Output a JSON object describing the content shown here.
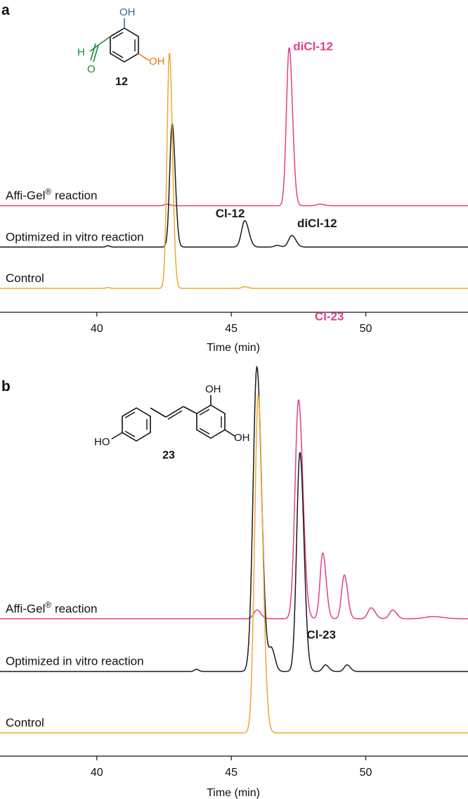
{
  "colors": {
    "control": "#f0a830",
    "optimized": "#1a1a1a",
    "affi_gel": "#e0408a",
    "mol_black": "#111111",
    "mol_blue": "#3b5fa8",
    "mol_orange": "#e07a1a",
    "mol_green": "#1f8a3a"
  },
  "chart_data": [
    {
      "type": "line",
      "panel": "a",
      "xlabel": "Time (min)",
      "xlim": [
        36.4,
        53.8
      ],
      "xticks": [
        40,
        45,
        50
      ],
      "series": [
        {
          "name": "Affi-Gel® reaction",
          "label_main": "Affi-Gel",
          "label_sup": "®",
          "label_rest": " reaction",
          "color_key": "affi_gel",
          "baseline_offset": 0.5,
          "peaks": [
            [
              42.6,
              0.01,
              0.09
            ],
            [
              47.15,
              0.96,
              0.1
            ],
            [
              48.3,
              0.01,
              0.12
            ]
          ]
        },
        {
          "name": "Optimized in vitro reaction",
          "color_key": "optimized",
          "baseline_offset": 0.25,
          "peaks": [
            [
              40.4,
              0.008,
              0.06
            ],
            [
              42.8,
              0.75,
              0.09
            ],
            [
              45.5,
              0.16,
              0.12
            ],
            [
              46.7,
              0.01,
              0.1
            ],
            [
              47.25,
              0.07,
              0.12
            ]
          ]
        },
        {
          "name": "Control",
          "color_key": "control",
          "baseline_offset": 0.0,
          "peaks": [
            [
              40.4,
              0.005,
              0.06
            ],
            [
              42.7,
              1.43,
              0.09
            ],
            [
              45.5,
              0.01,
              0.1
            ]
          ]
        }
      ],
      "annotations": [
        {
          "text": "diCl-12",
          "x": 47.3,
          "y": 1.44,
          "color_key": "affi_gel"
        },
        {
          "text": "Cl-12",
          "x": 45.5,
          "y": 0.43,
          "color_key": "optimized",
          "anchor": "end"
        },
        {
          "text": "diCl-12",
          "x": 47.45,
          "y": 0.37,
          "color_key": "optimized"
        }
      ],
      "molecule": {
        "number": "12",
        "substituents": [
          "OH",
          "OH",
          "H",
          "O"
        ]
      }
    },
    {
      "type": "line",
      "panel": "b",
      "xlabel": "Time (min)",
      "xlim": [
        36.4,
        53.8
      ],
      "xticks": [
        40,
        45,
        50
      ],
      "series": [
        {
          "name": "Affi-Gel® reaction",
          "label_main": "Affi-Gel",
          "label_sup": "®",
          "label_rest": " reaction",
          "color_key": "affi_gel",
          "baseline_offset": 0.52,
          "peaks": [
            [
              45.95,
              0.04,
              0.12
            ],
            [
              47.5,
              1.0,
              0.13
            ],
            [
              48.4,
              0.3,
              0.1
            ],
            [
              49.2,
              0.2,
              0.1
            ],
            [
              50.2,
              0.05,
              0.12
            ],
            [
              51.0,
              0.04,
              0.12
            ],
            [
              52.5,
              0.01,
              0.3
            ]
          ]
        },
        {
          "name": "Optimized in vitro reaction",
          "color_key": "optimized",
          "baseline_offset": 0.28,
          "peaks": [
            [
              43.7,
              0.01,
              0.07
            ],
            [
              45.95,
              1.39,
              0.14
            ],
            [
              46.5,
              0.1,
              0.1
            ],
            [
              47.55,
              1.0,
              0.12
            ],
            [
              48.5,
              0.03,
              0.1
            ],
            [
              49.3,
              0.03,
              0.1
            ]
          ]
        },
        {
          "name": "Control",
          "color_key": "control",
          "baseline_offset": 0.0,
          "peaks": [
            [
              46.0,
              1.54,
              0.13
            ]
          ]
        }
      ],
      "annotations": [
        {
          "text": "Cl-23",
          "x": 48.1,
          "y": 1.88,
          "color_key": "affi_gel"
        },
        {
          "text": "Cl-23",
          "x": 47.8,
          "y": 0.43,
          "color_key": "optimized"
        }
      ],
      "molecule": {
        "number": "23",
        "substituents": [
          "OH",
          "OH",
          "HO"
        ]
      }
    }
  ]
}
